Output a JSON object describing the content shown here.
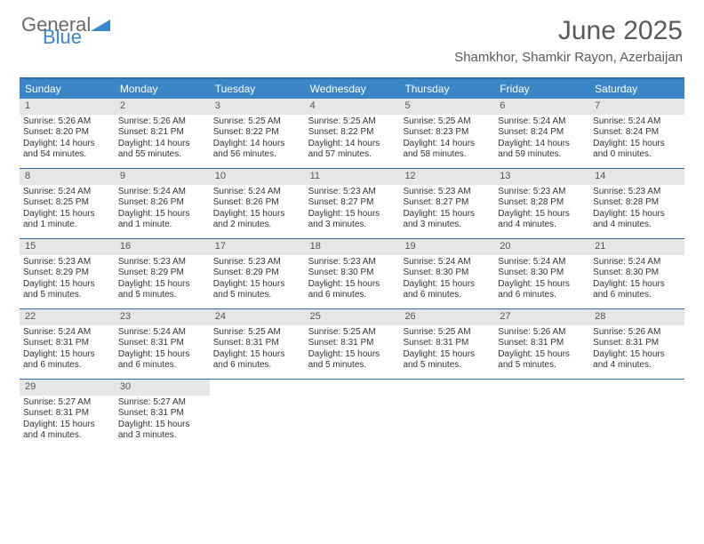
{
  "brand": {
    "word1": "General",
    "word2": "Blue"
  },
  "title": "June 2025",
  "location": "Shamkhor, Shamkir Rayon, Azerbaijan",
  "colors": {
    "header_bg": "#3b86c6",
    "header_text": "#ffffff",
    "border": "#2f6ea8",
    "datenum_bg": "#e6e6e6",
    "body_text": "#333333",
    "title_text": "#5a5a5a"
  },
  "day_headers": [
    "Sunday",
    "Monday",
    "Tuesday",
    "Wednesday",
    "Thursday",
    "Friday",
    "Saturday"
  ],
  "weeks": [
    [
      {
        "n": "1",
        "sr": "Sunrise: 5:26 AM",
        "ss": "Sunset: 8:20 PM",
        "dl1": "Daylight: 14 hours",
        "dl2": "and 54 minutes."
      },
      {
        "n": "2",
        "sr": "Sunrise: 5:26 AM",
        "ss": "Sunset: 8:21 PM",
        "dl1": "Daylight: 14 hours",
        "dl2": "and 55 minutes."
      },
      {
        "n": "3",
        "sr": "Sunrise: 5:25 AM",
        "ss": "Sunset: 8:22 PM",
        "dl1": "Daylight: 14 hours",
        "dl2": "and 56 minutes."
      },
      {
        "n": "4",
        "sr": "Sunrise: 5:25 AM",
        "ss": "Sunset: 8:22 PM",
        "dl1": "Daylight: 14 hours",
        "dl2": "and 57 minutes."
      },
      {
        "n": "5",
        "sr": "Sunrise: 5:25 AM",
        "ss": "Sunset: 8:23 PM",
        "dl1": "Daylight: 14 hours",
        "dl2": "and 58 minutes."
      },
      {
        "n": "6",
        "sr": "Sunrise: 5:24 AM",
        "ss": "Sunset: 8:24 PM",
        "dl1": "Daylight: 14 hours",
        "dl2": "and 59 minutes."
      },
      {
        "n": "7",
        "sr": "Sunrise: 5:24 AM",
        "ss": "Sunset: 8:24 PM",
        "dl1": "Daylight: 15 hours",
        "dl2": "and 0 minutes."
      }
    ],
    [
      {
        "n": "8",
        "sr": "Sunrise: 5:24 AM",
        "ss": "Sunset: 8:25 PM",
        "dl1": "Daylight: 15 hours",
        "dl2": "and 1 minute."
      },
      {
        "n": "9",
        "sr": "Sunrise: 5:24 AM",
        "ss": "Sunset: 8:26 PM",
        "dl1": "Daylight: 15 hours",
        "dl2": "and 1 minute."
      },
      {
        "n": "10",
        "sr": "Sunrise: 5:24 AM",
        "ss": "Sunset: 8:26 PM",
        "dl1": "Daylight: 15 hours",
        "dl2": "and 2 minutes."
      },
      {
        "n": "11",
        "sr": "Sunrise: 5:23 AM",
        "ss": "Sunset: 8:27 PM",
        "dl1": "Daylight: 15 hours",
        "dl2": "and 3 minutes."
      },
      {
        "n": "12",
        "sr": "Sunrise: 5:23 AM",
        "ss": "Sunset: 8:27 PM",
        "dl1": "Daylight: 15 hours",
        "dl2": "and 3 minutes."
      },
      {
        "n": "13",
        "sr": "Sunrise: 5:23 AM",
        "ss": "Sunset: 8:28 PM",
        "dl1": "Daylight: 15 hours",
        "dl2": "and 4 minutes."
      },
      {
        "n": "14",
        "sr": "Sunrise: 5:23 AM",
        "ss": "Sunset: 8:28 PM",
        "dl1": "Daylight: 15 hours",
        "dl2": "and 4 minutes."
      }
    ],
    [
      {
        "n": "15",
        "sr": "Sunrise: 5:23 AM",
        "ss": "Sunset: 8:29 PM",
        "dl1": "Daylight: 15 hours",
        "dl2": "and 5 minutes."
      },
      {
        "n": "16",
        "sr": "Sunrise: 5:23 AM",
        "ss": "Sunset: 8:29 PM",
        "dl1": "Daylight: 15 hours",
        "dl2": "and 5 minutes."
      },
      {
        "n": "17",
        "sr": "Sunrise: 5:23 AM",
        "ss": "Sunset: 8:29 PM",
        "dl1": "Daylight: 15 hours",
        "dl2": "and 5 minutes."
      },
      {
        "n": "18",
        "sr": "Sunrise: 5:23 AM",
        "ss": "Sunset: 8:30 PM",
        "dl1": "Daylight: 15 hours",
        "dl2": "and 6 minutes."
      },
      {
        "n": "19",
        "sr": "Sunrise: 5:24 AM",
        "ss": "Sunset: 8:30 PM",
        "dl1": "Daylight: 15 hours",
        "dl2": "and 6 minutes."
      },
      {
        "n": "20",
        "sr": "Sunrise: 5:24 AM",
        "ss": "Sunset: 8:30 PM",
        "dl1": "Daylight: 15 hours",
        "dl2": "and 6 minutes."
      },
      {
        "n": "21",
        "sr": "Sunrise: 5:24 AM",
        "ss": "Sunset: 8:30 PM",
        "dl1": "Daylight: 15 hours",
        "dl2": "and 6 minutes."
      }
    ],
    [
      {
        "n": "22",
        "sr": "Sunrise: 5:24 AM",
        "ss": "Sunset: 8:31 PM",
        "dl1": "Daylight: 15 hours",
        "dl2": "and 6 minutes."
      },
      {
        "n": "23",
        "sr": "Sunrise: 5:24 AM",
        "ss": "Sunset: 8:31 PM",
        "dl1": "Daylight: 15 hours",
        "dl2": "and 6 minutes."
      },
      {
        "n": "24",
        "sr": "Sunrise: 5:25 AM",
        "ss": "Sunset: 8:31 PM",
        "dl1": "Daylight: 15 hours",
        "dl2": "and 6 minutes."
      },
      {
        "n": "25",
        "sr": "Sunrise: 5:25 AM",
        "ss": "Sunset: 8:31 PM",
        "dl1": "Daylight: 15 hours",
        "dl2": "and 5 minutes."
      },
      {
        "n": "26",
        "sr": "Sunrise: 5:25 AM",
        "ss": "Sunset: 8:31 PM",
        "dl1": "Daylight: 15 hours",
        "dl2": "and 5 minutes."
      },
      {
        "n": "27",
        "sr": "Sunrise: 5:26 AM",
        "ss": "Sunset: 8:31 PM",
        "dl1": "Daylight: 15 hours",
        "dl2": "and 5 minutes."
      },
      {
        "n": "28",
        "sr": "Sunrise: 5:26 AM",
        "ss": "Sunset: 8:31 PM",
        "dl1": "Daylight: 15 hours",
        "dl2": "and 4 minutes."
      }
    ],
    [
      {
        "n": "29",
        "sr": "Sunrise: 5:27 AM",
        "ss": "Sunset: 8:31 PM",
        "dl1": "Daylight: 15 hours",
        "dl2": "and 4 minutes."
      },
      {
        "n": "30",
        "sr": "Sunrise: 5:27 AM",
        "ss": "Sunset: 8:31 PM",
        "dl1": "Daylight: 15 hours",
        "dl2": "and 3 minutes."
      },
      null,
      null,
      null,
      null,
      null
    ]
  ]
}
